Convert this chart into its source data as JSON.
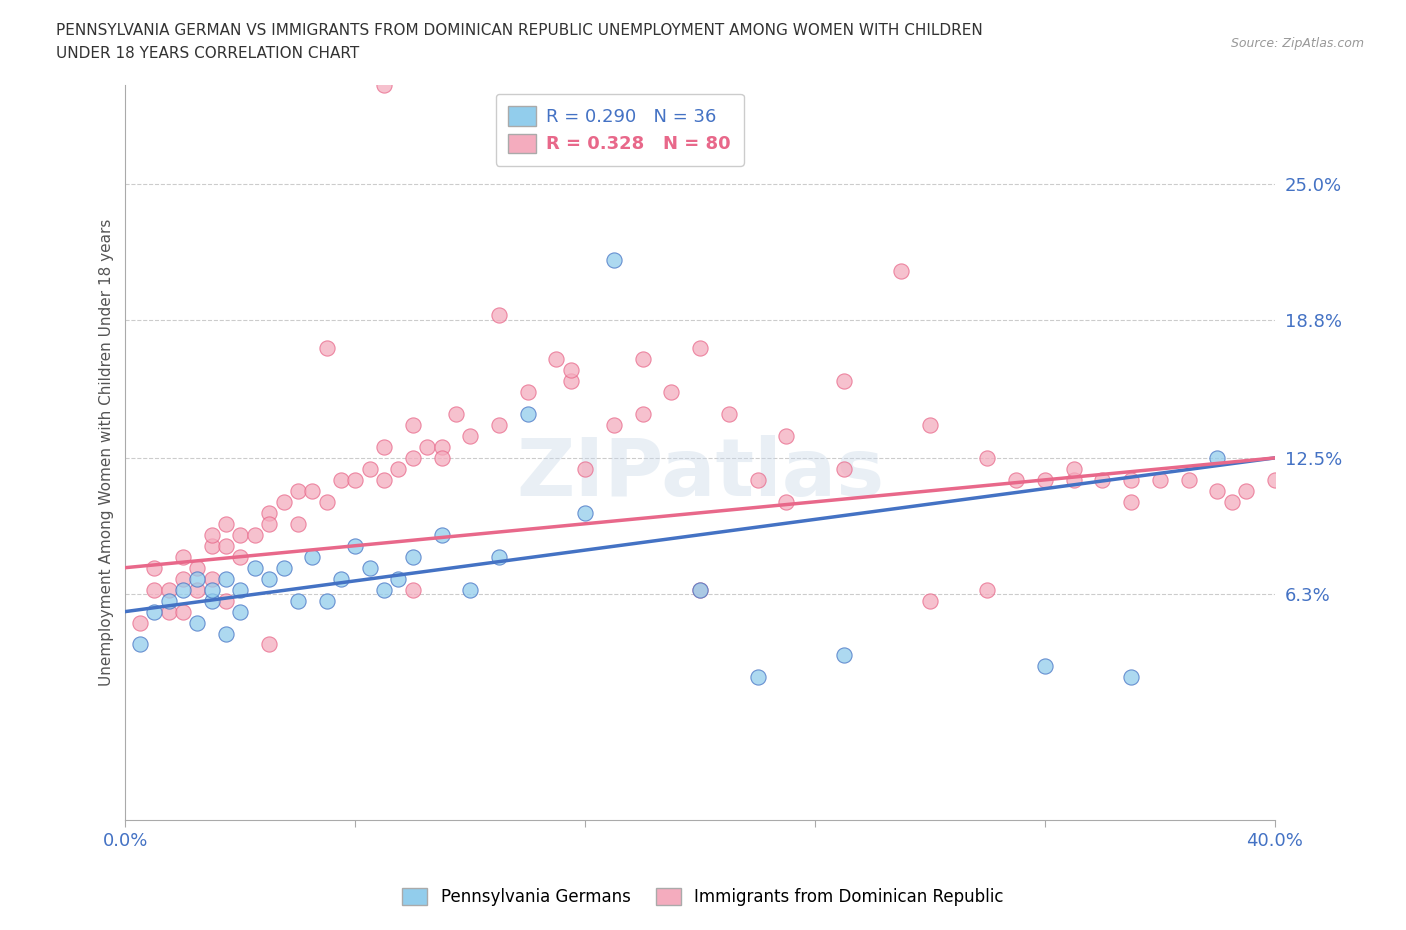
{
  "title_line1": "PENNSYLVANIA GERMAN VS IMMIGRANTS FROM DOMINICAN REPUBLIC UNEMPLOYMENT AMONG WOMEN WITH CHILDREN",
  "title_line2": "UNDER 18 YEARS CORRELATION CHART",
  "source_text": "Source: ZipAtlas.com",
  "ylabel": "Unemployment Among Women with Children Under 18 years",
  "xlim": [
    0.0,
    0.4
  ],
  "ylim": [
    -0.04,
    0.295
  ],
  "ytick_labels": [
    "6.3%",
    "12.5%",
    "18.8%",
    "25.0%"
  ],
  "ytick_values": [
    0.063,
    0.125,
    0.188,
    0.25
  ],
  "xtick_labels": [
    "0.0%",
    "",
    "",
    "",
    "",
    "40.0%"
  ],
  "xtick_values": [
    0.0,
    0.08,
    0.16,
    0.24,
    0.32,
    0.4
  ],
  "blue_color": "#92CDEC",
  "pink_color": "#F4ACBE",
  "blue_line_color": "#4472C4",
  "pink_line_color": "#E8688A",
  "legend_R_blue": "0.290",
  "legend_N_blue": "36",
  "legend_R_pink": "0.328",
  "legend_N_pink": "80",
  "background_color": "#FFFFFF",
  "blue_scatter_x": [
    0.005,
    0.01,
    0.015,
    0.02,
    0.025,
    0.025,
    0.03,
    0.03,
    0.035,
    0.035,
    0.04,
    0.04,
    0.045,
    0.05,
    0.055,
    0.06,
    0.065,
    0.07,
    0.075,
    0.08,
    0.085,
    0.09,
    0.095,
    0.1,
    0.11,
    0.12,
    0.13,
    0.14,
    0.16,
    0.17,
    0.2,
    0.22,
    0.25,
    0.32,
    0.35,
    0.38
  ],
  "blue_scatter_y": [
    0.04,
    0.055,
    0.06,
    0.065,
    0.05,
    0.07,
    0.06,
    0.065,
    0.045,
    0.07,
    0.065,
    0.055,
    0.075,
    0.07,
    0.075,
    0.06,
    0.08,
    0.06,
    0.07,
    0.085,
    0.075,
    0.065,
    0.07,
    0.08,
    0.09,
    0.065,
    0.08,
    0.145,
    0.1,
    0.215,
    0.065,
    0.025,
    0.035,
    0.03,
    0.025,
    0.125
  ],
  "pink_scatter_x": [
    0.005,
    0.01,
    0.015,
    0.02,
    0.02,
    0.025,
    0.025,
    0.03,
    0.03,
    0.03,
    0.035,
    0.035,
    0.04,
    0.04,
    0.045,
    0.05,
    0.05,
    0.055,
    0.06,
    0.06,
    0.065,
    0.07,
    0.075,
    0.08,
    0.085,
    0.09,
    0.09,
    0.095,
    0.1,
    0.1,
    0.105,
    0.11,
    0.115,
    0.12,
    0.13,
    0.14,
    0.15,
    0.155,
    0.16,
    0.17,
    0.18,
    0.19,
    0.2,
    0.21,
    0.22,
    0.23,
    0.25,
    0.27,
    0.28,
    0.3,
    0.31,
    0.32,
    0.33,
    0.34,
    0.35,
    0.36,
    0.37,
    0.38,
    0.385,
    0.39,
    0.4,
    0.35,
    0.33,
    0.3,
    0.28,
    0.25,
    0.23,
    0.2,
    0.18,
    0.155,
    0.13,
    0.11,
    0.09,
    0.07,
    0.05,
    0.035,
    0.02,
    0.015,
    0.01,
    0.1
  ],
  "pink_scatter_y": [
    0.05,
    0.065,
    0.055,
    0.08,
    0.07,
    0.075,
    0.065,
    0.085,
    0.09,
    0.07,
    0.095,
    0.085,
    0.09,
    0.08,
    0.09,
    0.1,
    0.095,
    0.105,
    0.11,
    0.095,
    0.11,
    0.105,
    0.115,
    0.115,
    0.12,
    0.115,
    0.13,
    0.12,
    0.125,
    0.14,
    0.13,
    0.13,
    0.145,
    0.135,
    0.14,
    0.155,
    0.17,
    0.16,
    0.12,
    0.14,
    0.17,
    0.155,
    0.065,
    0.145,
    0.115,
    0.135,
    0.16,
    0.21,
    0.14,
    0.125,
    0.115,
    0.115,
    0.115,
    0.115,
    0.105,
    0.115,
    0.115,
    0.11,
    0.105,
    0.11,
    0.115,
    0.115,
    0.12,
    0.065,
    0.06,
    0.12,
    0.105,
    0.175,
    0.145,
    0.165,
    0.19,
    0.125,
    0.295,
    0.175,
    0.04,
    0.06,
    0.055,
    0.065,
    0.075,
    0.065
  ]
}
